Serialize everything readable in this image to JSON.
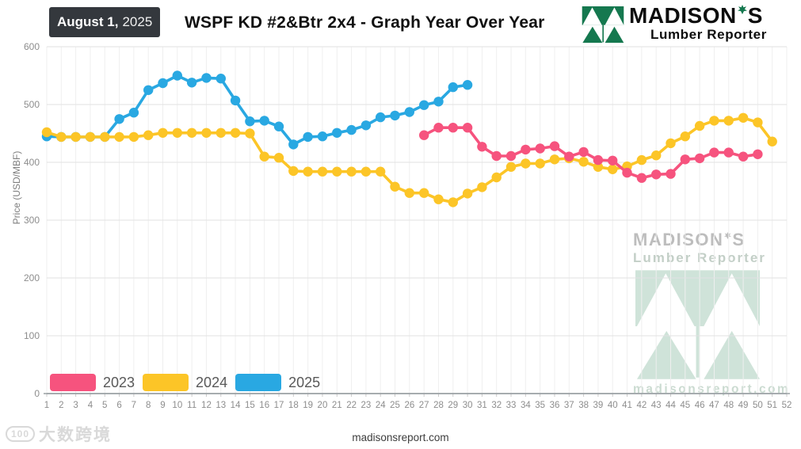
{
  "header": {
    "date_bold": "August 1,",
    "date_year": "2025",
    "title": "WSPF KD #2&Btr 2x4 - Graph Year Over Year",
    "logo_name_left": "MADISON",
    "logo_name_right": "S",
    "logo_subtitle": "Lumber Reporter",
    "logo_green": "#15784F"
  },
  "chart_data": {
    "type": "line",
    "title": "WSPF KD #2&Btr 2x4 - Graph Year Over Year",
    "xlabel": "",
    "ylabel": "Price (USD/MBF)",
    "x_range": [
      1,
      52
    ],
    "ylim": [
      0,
      600
    ],
    "yticks": [
      0,
      100,
      200,
      300,
      400,
      500,
      600
    ],
    "xticks": [
      1,
      2,
      3,
      4,
      5,
      6,
      7,
      8,
      9,
      10,
      11,
      12,
      13,
      14,
      15,
      16,
      17,
      18,
      19,
      20,
      21,
      22,
      23,
      24,
      25,
      26,
      27,
      28,
      29,
      30,
      31,
      32,
      33,
      34,
      35,
      36,
      37,
      38,
      39,
      40,
      41,
      42,
      43,
      44,
      45,
      46,
      47,
      48,
      49,
      50,
      51,
      52
    ],
    "grid": true,
    "legend_position": "bottom-left-inside",
    "units": "USD/MBF",
    "series": [
      {
        "name": "2023",
        "color": "#F6537E",
        "start_week": 27,
        "values": [
          447,
          460,
          460,
          460,
          427,
          411,
          411,
          422,
          424,
          428,
          410,
          418,
          404,
          403,
          382,
          373,
          379,
          380,
          405,
          407,
          417,
          417,
          410,
          414
        ]
      },
      {
        "name": "2024",
        "color": "#FCC527",
        "start_week": 1,
        "values": [
          452,
          444,
          444,
          444,
          444,
          444,
          444,
          447,
          451,
          451,
          451,
          451,
          451,
          451,
          450,
          410,
          408,
          385,
          384,
          384,
          384,
          384,
          384,
          384,
          358,
          347,
          347,
          336,
          331,
          346,
          357,
          374,
          392,
          398,
          398,
          405,
          407,
          401,
          392,
          388,
          393,
          404,
          412,
          433,
          445,
          463,
          472,
          472,
          477,
          469,
          436
        ]
      },
      {
        "name": "2025",
        "color": "#29A8E2",
        "start_week": 1,
        "values": [
          445,
          444,
          444,
          444,
          444,
          475,
          486,
          525,
          537,
          550,
          538,
          546,
          545,
          507,
          471,
          472,
          462,
          431,
          444,
          445,
          451,
          456,
          464,
          478,
          481,
          487,
          499,
          505,
          530,
          534
        ]
      }
    ]
  },
  "watermarks": {
    "center_name_left": "MADISON",
    "center_name_right": "S",
    "center_line2": "Lumber Reporter",
    "center_site": "madisonsreport.com",
    "bottom_left_badge": "100",
    "bottom_left_text": "大数跨境"
  },
  "footer": {
    "site": "madisonsreport.com"
  }
}
